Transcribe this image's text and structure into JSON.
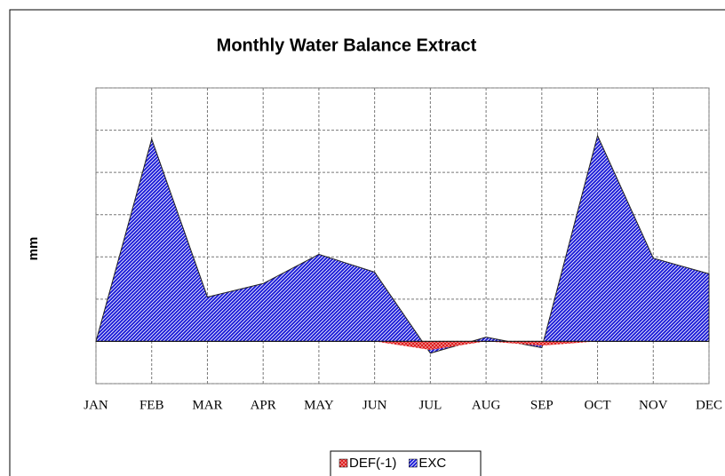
{
  "chart_data": {
    "type": "area",
    "title": "Monthly Water Balance Extract",
    "y_label": "mm",
    "categories": [
      "JAN",
      "FEB",
      "MAR",
      "APR",
      "MAY",
      "JUN",
      "JUL",
      "AUG",
      "SEP",
      "OCT",
      "NOV",
      "DEC"
    ],
    "series": [
      {
        "name": "EXC",
        "color": "#1c1cd8",
        "values": [
          0,
          4.79,
          1.05,
          1.37,
          2.06,
          1.64,
          -0.28,
          0.1,
          -0.15,
          4.87,
          1.97,
          1.6
        ]
      },
      {
        "name": "DEF(-1)",
        "color": "#e02020",
        "values": [
          0,
          0,
          0,
          0,
          0,
          0,
          -0.2,
          0,
          -0.1,
          0,
          0,
          0
        ]
      }
    ],
    "legend_order": [
      "DEF(-1)",
      "EXC"
    ],
    "ylim": [
      -1,
      6
    ],
    "yticks": [
      -1,
      0,
      1,
      2,
      3,
      4,
      5,
      6
    ],
    "grid": true,
    "legend": "bottom"
  }
}
